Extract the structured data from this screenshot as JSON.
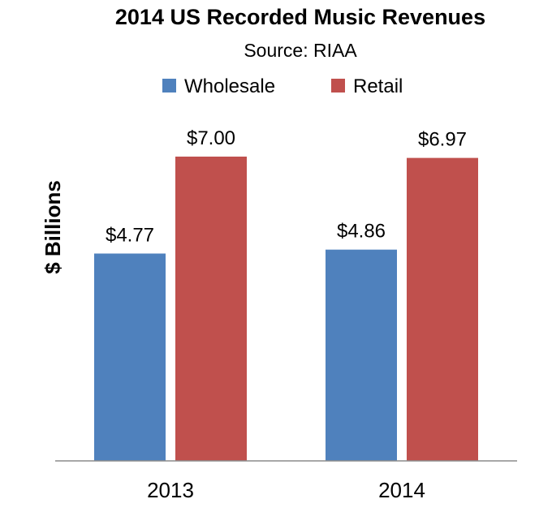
{
  "chart_data": {
    "type": "bar",
    "title": "2014 US Recorded Music Revenues",
    "subtitle": "Source: RIAA",
    "ylabel": "$ Billions",
    "xlabel": "",
    "categories": [
      "2013",
      "2014"
    ],
    "series": [
      {
        "name": "Wholesale",
        "color": "#4F81BD",
        "values": [
          4.77,
          4.86
        ],
        "labels": [
          "$4.77",
          "$4.86"
        ]
      },
      {
        "name": "Retail",
        "color": "#C0504D",
        "values": [
          7.0,
          6.97
        ],
        "labels": [
          "$7.00",
          "$6.97"
        ]
      }
    ],
    "ylim": [
      0,
      8
    ],
    "grid": false,
    "legend_position": "top"
  }
}
